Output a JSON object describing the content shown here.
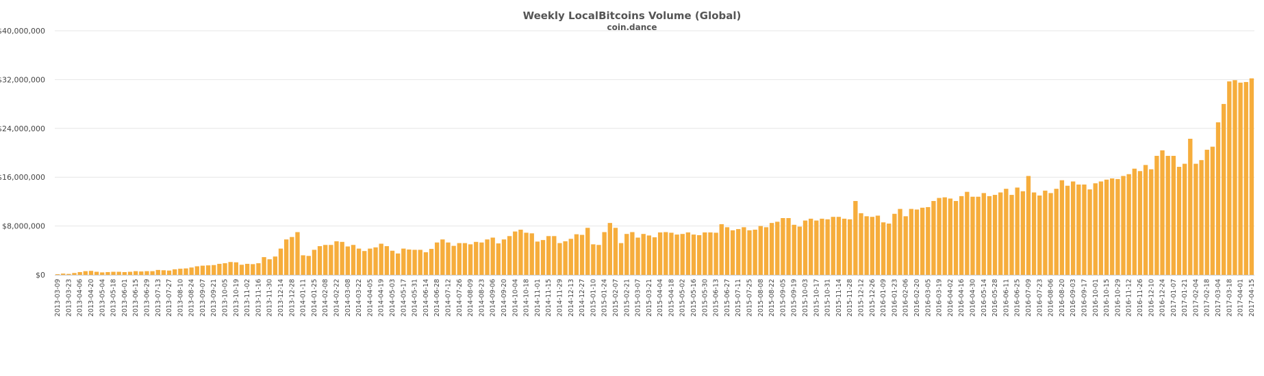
{
  "chart_data": {
    "type": "bar",
    "title": "Weekly LocalBitcoins Volume (Global)",
    "subtitle": "coin.dance",
    "xlabel": "",
    "ylabel": "",
    "ylim": [
      0,
      40000000
    ],
    "yticks": [
      "$0",
      "$8,000,000",
      "$16,000,000",
      "$24,000,000",
      "$32,000,000",
      "$40,000,000"
    ],
    "ytick_values": [
      0,
      8000000,
      16000000,
      24000000,
      32000000,
      40000000
    ],
    "grid": true,
    "legend": "none",
    "bar_color": "#f6ad3c",
    "start_week": "2013-03-09",
    "week_step_days": 7,
    "tick_every": 2,
    "values": [
      100000,
      200000,
      150000,
      300000,
      450000,
      600000,
      650000,
      500000,
      400000,
      450000,
      500000,
      500000,
      450000,
      500000,
      600000,
      550000,
      600000,
      600000,
      800000,
      750000,
      700000,
      900000,
      1000000,
      1050000,
      1200000,
      1400000,
      1500000,
      1550000,
      1600000,
      1800000,
      1900000,
      2100000,
      2050000,
      1650000,
      1800000,
      1750000,
      1900000,
      2900000,
      2550000,
      3000000,
      4300000,
      5800000,
      6200000,
      7000000,
      3200000,
      3100000,
      4100000,
      4700000,
      4900000,
      4900000,
      5500000,
      5400000,
      4650000,
      4900000,
      4300000,
      3900000,
      4300000,
      4500000,
      5100000,
      4700000,
      3950000,
      3500000,
      4300000,
      4150000,
      4100000,
      4100000,
      3700000,
      4250000,
      5300000,
      5800000,
      5300000,
      4750000,
      5200000,
      5200000,
      5000000,
      5400000,
      5300000,
      5800000,
      6100000,
      5150000,
      5800000,
      6350000,
      7100000,
      7400000,
      6900000,
      6800000,
      5450000,
      5700000,
      6350000,
      6350000,
      5200000,
      5500000,
      5900000,
      6650000,
      6550000,
      7700000,
      5000000,
      4900000,
      7000000,
      8500000,
      7700000,
      5200000,
      6700000,
      7000000,
      6100000,
      6700000,
      6450000,
      6150000,
      6950000,
      7000000,
      6900000,
      6600000,
      6700000,
      6950000,
      6600000,
      6500000,
      6950000,
      6950000,
      6900000,
      8300000,
      7800000,
      7300000,
      7500000,
      7800000,
      7300000,
      7400000,
      8000000,
      7800000,
      8500000,
      8700000,
      9300000,
      9300000,
      8200000,
      7900000,
      8900000,
      9200000,
      8900000,
      9200000,
      9100000,
      9500000,
      9500000,
      9200000,
      9100000,
      12100000,
      10100000,
      9600000,
      9500000,
      9700000,
      8600000,
      8400000,
      10000000,
      10800000,
      9600000,
      10800000,
      10700000,
      11000000,
      11100000,
      12100000,
      12600000,
      12700000,
      12500000,
      12100000,
      12900000,
      13600000,
      12800000,
      12800000,
      13400000,
      12900000,
      13100000,
      13500000,
      14100000,
      13100000,
      14300000,
      13700000,
      16200000,
      13500000,
      13000000,
      13800000,
      13400000,
      14100000,
      15500000,
      14600000,
      15300000,
      14800000,
      14800000,
      14000000,
      15000000,
      15300000,
      15600000,
      15800000,
      15700000,
      16200000,
      16500000,
      17400000,
      17000000,
      18000000,
      17300000,
      19500000,
      20400000,
      19500000,
      19500000,
      17700000,
      18200000,
      22300000,
      18200000,
      18800000,
      20500000,
      21000000,
      25000000,
      28000000,
      31700000,
      31900000,
      31500000,
      31600000,
      32200000
    ]
  }
}
